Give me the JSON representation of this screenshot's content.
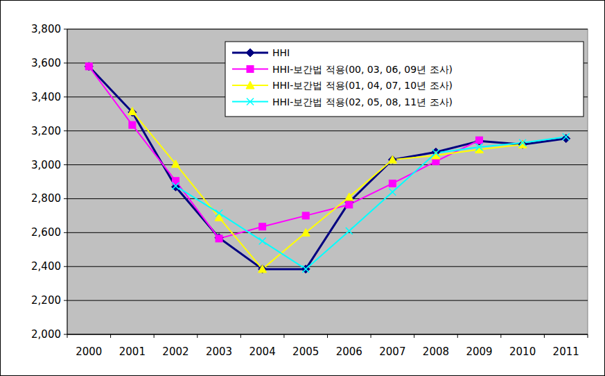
{
  "chart_data": {
    "type": "line",
    "categories": [
      "2000",
      "2001",
      "2002",
      "2003",
      "2004",
      "2005",
      "2006",
      "2007",
      "2008",
      "2009",
      "2010",
      "2011"
    ],
    "series": [
      {
        "name": "HHI",
        "color": "#000080",
        "marker": "diamond",
        "line_style": "solid",
        "values": [
          3580,
          3310,
          2870,
          2570,
          2385,
          2385,
          2780,
          3030,
          3075,
          3140,
          3120,
          3155
        ]
      },
      {
        "name": "HHI-보간법 적용(00, 03, 06, 09년 조사)",
        "color": "#ff00ff",
        "marker": "square",
        "line_style": "solid",
        "values": [
          3580,
          3235,
          2905,
          2565,
          2635,
          2700,
          2765,
          2890,
          3020,
          3145,
          null,
          null
        ]
      },
      {
        "name": "HHI-보간법 적용(01, 04, 07, 10년 조사)",
        "color": "#ffff00",
        "marker": "triangle",
        "line_style": "solid",
        "values": [
          null,
          3315,
          3005,
          2690,
          2385,
          2600,
          2810,
          3030,
          3055,
          3090,
          3120,
          null
        ]
      },
      {
        "name": "HHI-보간법 적용(02, 05, 08, 11년 조사)",
        "color": "#00ffff",
        "marker": "x",
        "line_style": "solid",
        "values": [
          null,
          null,
          2875,
          2715,
          2550,
          2385,
          2610,
          2840,
          3070,
          3105,
          3130,
          3165
        ]
      }
    ],
    "ylim": [
      2000,
      3800
    ],
    "yticks": [
      {
        "value": 2000,
        "label": "2,000"
      },
      {
        "value": 2200,
        "label": "2,200"
      },
      {
        "value": 2400,
        "label": "2,400"
      },
      {
        "value": 2600,
        "label": "2,600"
      },
      {
        "value": 2800,
        "label": "2,800"
      },
      {
        "value": 3000,
        "label": "3,000"
      },
      {
        "value": 3200,
        "label": "3,200"
      },
      {
        "value": 3400,
        "label": "3,400"
      },
      {
        "value": 3600,
        "label": "3,600"
      },
      {
        "value": 3800,
        "label": "3,800"
      }
    ],
    "grid": true,
    "legend": "top-right"
  }
}
